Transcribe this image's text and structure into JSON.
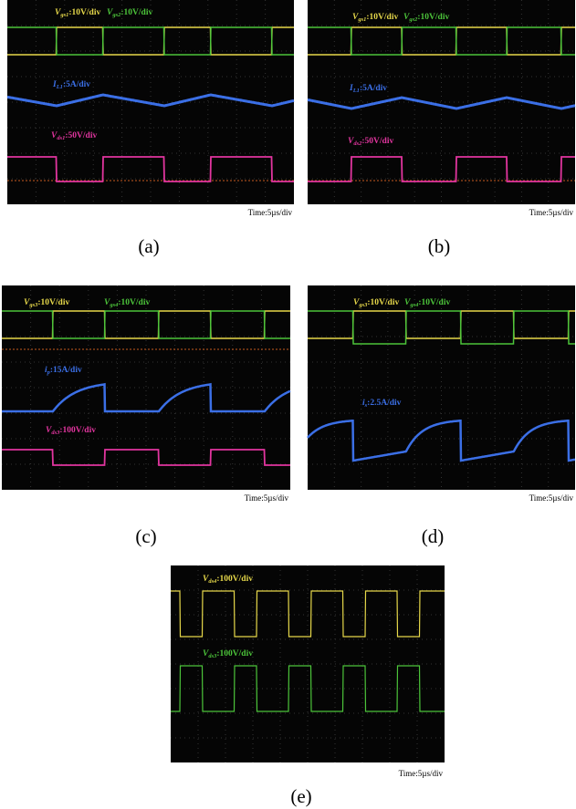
{
  "panels": [
    {
      "caption": "(a)",
      "time": "Time:5µs/div",
      "labels": [
        {
          "symbol": "V",
          "sub": "gs1",
          "scale": ":10V/div"
        },
        {
          "symbol": "V",
          "sub": "gs2",
          "scale": ":10V/div"
        },
        {
          "symbol": "I",
          "sub": "L1",
          "scale": ":5A/div"
        },
        {
          "symbol": "V",
          "sub": "ds1",
          "scale": ":50V/div"
        }
      ]
    },
    {
      "caption": "(b)",
      "time": "Time:5µs/div",
      "labels": [
        {
          "symbol": "V",
          "sub": "gs1",
          "scale": ":10V/div"
        },
        {
          "symbol": "V",
          "sub": "gs2",
          "scale": ":10V/div"
        },
        {
          "symbol": "I",
          "sub": "L1",
          "scale": ":5A/div"
        },
        {
          "symbol": "V",
          "sub": "ds2",
          "scale": ":50V/div"
        }
      ]
    },
    {
      "caption": "(c)",
      "time": "Time:5µs/div",
      "labels": [
        {
          "symbol": "V",
          "sub": "gs3",
          "scale": ":10V/div"
        },
        {
          "symbol": "V",
          "sub": "gs4",
          "scale": ":10V/div"
        },
        {
          "symbol": "i",
          "sub": "p",
          "scale": ":15A/div"
        },
        {
          "symbol": "V",
          "sub": "ds3",
          "scale": ":100V/div"
        }
      ]
    },
    {
      "caption": "(d)",
      "time": "Time:5µs/div",
      "labels": [
        {
          "symbol": "V",
          "sub": "gs3",
          "scale": ":10V/div"
        },
        {
          "symbol": "V",
          "sub": "gs4",
          "scale": ":10V/div"
        },
        {
          "symbol": "i",
          "sub": "s",
          "scale": ":2.5A/div"
        }
      ]
    },
    {
      "caption": "(e)",
      "time": "Time:5µs/div",
      "labels": [
        {
          "symbol": "V",
          "sub": "ds4",
          "scale": ":100V/div"
        },
        {
          "symbol": "V",
          "sub": "ds3",
          "scale": ":100V/div"
        }
      ]
    }
  ]
}
